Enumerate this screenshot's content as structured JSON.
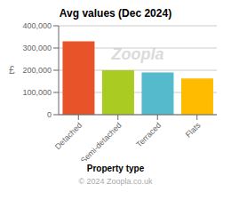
{
  "chart_data": {
    "type": "bar",
    "title": "Avg values (Dec 2024)",
    "categories": [
      "Detached",
      "Semi-detached",
      "Terraced",
      "Flats"
    ],
    "values": [
      330000,
      200000,
      190000,
      163000
    ],
    "colors": [
      "#E8532A",
      "#AACC22",
      "#55BBCC",
      "#FFBB00"
    ],
    "ylabel": "£",
    "xlabel": "Property type",
    "ylim": [
      0,
      400000
    ],
    "yticks": [
      0,
      {
        "value": 100000,
        "label": "100,000"
      },
      {
        "value": 200000,
        "label": "200,000"
      },
      {
        "value": 300000,
        "label": "300,000"
      },
      {
        "value": 400000,
        "label": "400,000"
      }
    ],
    "grid": true,
    "annotations": [
      "Zoopla",
      "© 2024 Zoopla.co.uk"
    ]
  }
}
